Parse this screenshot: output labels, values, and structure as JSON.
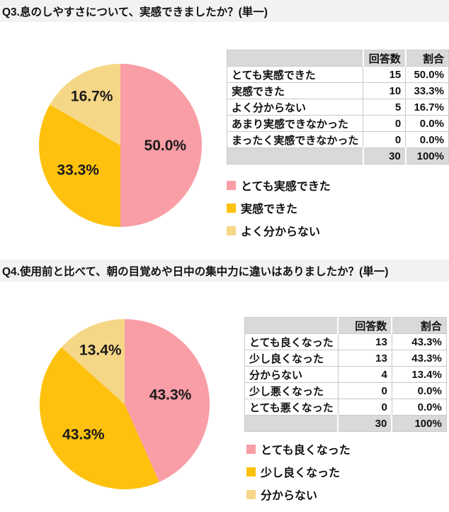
{
  "colors": {
    "pink": "#F99DA6",
    "gold": "#FEC10D",
    "cream": "#F6D787",
    "title_bar_bg": "#F2F2F2",
    "table_header_bg": "#D9D9D9",
    "table_border": "#C9C9C9"
  },
  "sections": [
    {
      "title": "Q3.息のしやすさについて、実感できましたか？(単一)",
      "table": {
        "count_header": "回答数",
        "pct_header": "割合",
        "rows": [
          {
            "label": "とても実感できた",
            "count": "15",
            "pct": "50.0%"
          },
          {
            "label": "実感できた",
            "count": "10",
            "pct": "33.3%"
          },
          {
            "label": "よく分からない",
            "count": "5",
            "pct": "16.7%"
          },
          {
            "label": "あまり実感できなかった",
            "count": "0",
            "pct": "0.0%"
          },
          {
            "label": "まったく実感できなかった",
            "count": "0",
            "pct": "0.0%"
          }
        ],
        "total_count": "30",
        "total_pct": "100%"
      },
      "legend": [
        {
          "label": "とても実感できた",
          "color": "#F99DA6"
        },
        {
          "label": "実感できた",
          "color": "#FEC10D"
        },
        {
          "label": "よく分からない",
          "color": "#F6D787"
        }
      ]
    },
    {
      "title": "Q4.使用前と比べて、朝の目覚めや日中の集中力に違いはありましたか？(単一)",
      "table": {
        "count_header": "回答数",
        "pct_header": "割合",
        "rows": [
          {
            "label": "とても良くなった",
            "count": "13",
            "pct": "43.3%"
          },
          {
            "label": "少し良くなった",
            "count": "13",
            "pct": "43.3%"
          },
          {
            "label": "分からない",
            "count": "4",
            "pct": "13.4%"
          },
          {
            "label": "少し悪くなった",
            "count": "0",
            "pct": "0.0%"
          },
          {
            "label": "とても悪くなった",
            "count": "0",
            "pct": "0.0%"
          }
        ],
        "total_count": "30",
        "total_pct": "100%"
      },
      "legend": [
        {
          "label": "とても良くなった",
          "color": "#F99DA6"
        },
        {
          "label": "少し良くなった",
          "color": "#FEC10D"
        },
        {
          "label": "分からない",
          "color": "#F6D787"
        }
      ]
    }
  ],
  "chart_data": [
    {
      "type": "pie",
      "title": "Q3.息のしやすさについて、実感できましたか？(単一)",
      "categories": [
        "とても実感できた",
        "実感できた",
        "よく分からない",
        "あまり実感できなかった",
        "まったく実感できなかった"
      ],
      "values": [
        15,
        10,
        5,
        0,
        0
      ],
      "percent_labels": [
        "50.0%",
        "33.3%",
        "16.7%",
        "0.0%",
        "0.0%"
      ],
      "slice_colors": [
        "#F99DA6",
        "#FEC10D",
        "#F6D787"
      ],
      "total": 30,
      "start_angle": "12-oclock",
      "direction": "clockwise",
      "legend_position": "right-column-below-table"
    },
    {
      "type": "pie",
      "title": "Q4.使用前と比べて、朝の目覚めや日中の集中力に違いはありましたか？(単一)",
      "categories": [
        "とても良くなった",
        "少し良くなった",
        "分からない",
        "少し悪くなった",
        "とても悪くなった"
      ],
      "values": [
        13,
        13,
        4,
        0,
        0
      ],
      "percent_labels": [
        "43.3%",
        "43.3%",
        "13.4%",
        "0.0%",
        "0.0%"
      ],
      "slice_colors": [
        "#F99DA6",
        "#FEC10D",
        "#F6D787"
      ],
      "total": 30,
      "start_angle": "12-oclock",
      "direction": "clockwise",
      "legend_position": "right-column-below-table"
    }
  ]
}
